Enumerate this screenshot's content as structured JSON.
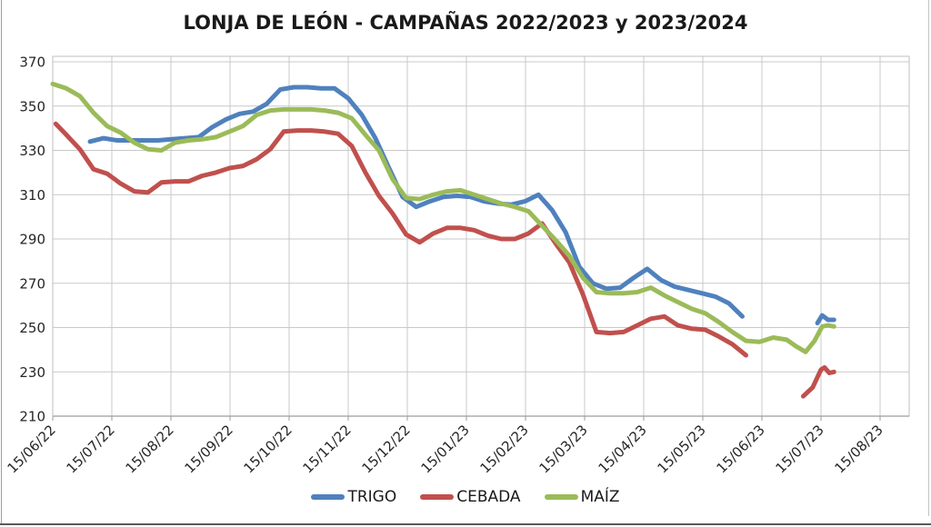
{
  "chart_data": {
    "type": "line",
    "title": "LONJA DE LEÓN - CAMPAÑAS 2022/2023 y 2023/2024",
    "x_axis_note": "x in month-tick units: 0 = 15/06/22, +1 per monthly tick; points are weekly lonja sessions",
    "x_tick_labels": [
      "15/06/22",
      "15/07/22",
      "15/08/22",
      "15/09/22",
      "15/10/22",
      "15/11/22",
      "15/12/22",
      "15/01/23",
      "15/02/23",
      "15/03/23",
      "15/04/23",
      "15/05/23",
      "15/06/23",
      "15/07/23",
      "15/08/23"
    ],
    "y_ticks": [
      210,
      230,
      250,
      270,
      290,
      310,
      330,
      350,
      370
    ],
    "ylim": [
      210,
      370
    ],
    "xlim_months": [
      0,
      14.49
    ],
    "grid": true,
    "legend_position": "bottom",
    "axis_color": "#9c9c9c",
    "grid_color": "#c9c9c9",
    "series": [
      {
        "name": "TRIGO",
        "color": "#4F81BD",
        "segments": [
          [
            [
              0.63,
              334
            ],
            [
              0.86,
              335.5
            ],
            [
              1.09,
              334.5
            ],
            [
              1.32,
              334.5
            ],
            [
              1.55,
              334.5
            ],
            [
              1.78,
              334.5
            ],
            [
              2.01,
              335
            ],
            [
              2.24,
              335.5
            ],
            [
              2.47,
              336
            ],
            [
              2.7,
              340.5
            ],
            [
              2.93,
              344
            ],
            [
              3.16,
              346.5
            ],
            [
              3.39,
              347.5
            ],
            [
              3.62,
              351
            ],
            [
              3.85,
              357.5
            ],
            [
              4.08,
              358.5
            ],
            [
              4.31,
              358.5
            ],
            [
              4.54,
              358
            ],
            [
              4.77,
              358
            ],
            [
              5.0,
              353.5
            ],
            [
              5.23,
              346
            ],
            [
              5.46,
              335.5
            ],
            [
              5.69,
              322
            ],
            [
              5.92,
              309
            ],
            [
              6.15,
              304.5
            ],
            [
              6.38,
              307
            ],
            [
              6.61,
              309
            ],
            [
              6.84,
              309.5
            ],
            [
              7.07,
              309
            ],
            [
              7.3,
              307
            ],
            [
              7.53,
              306
            ],
            [
              7.76,
              305.5
            ],
            [
              7.99,
              307
            ],
            [
              8.22,
              310
            ],
            [
              8.45,
              303
            ],
            [
              8.68,
              293
            ],
            [
              8.91,
              277.5
            ],
            [
              9.14,
              270
            ],
            [
              9.37,
              267.5
            ],
            [
              9.6,
              268
            ],
            [
              9.83,
              272.5
            ],
            [
              10.06,
              276.5
            ],
            [
              10.29,
              271.5
            ],
            [
              10.52,
              268.5
            ],
            [
              10.75,
              267
            ],
            [
              10.98,
              265.5
            ],
            [
              11.21,
              264
            ],
            [
              11.44,
              261
            ],
            [
              11.67,
              255
            ]
          ],
          [
            [
              12.94,
              252
            ],
            [
              13.02,
              255.5
            ],
            [
              13.12,
              253.5
            ],
            [
              13.22,
              253.5
            ]
          ]
        ]
      },
      {
        "name": "CEBADA",
        "color": "#C0504D",
        "segments": [
          [
            [
              0.05,
              342
            ],
            [
              0.23,
              337
            ],
            [
              0.46,
              330.5
            ],
            [
              0.69,
              321.5
            ],
            [
              0.92,
              319.5
            ],
            [
              1.15,
              315
            ],
            [
              1.38,
              311.5
            ],
            [
              1.61,
              311
            ],
            [
              1.84,
              315.5
            ],
            [
              2.07,
              316
            ],
            [
              2.3,
              316
            ],
            [
              2.53,
              318.5
            ],
            [
              2.76,
              320
            ],
            [
              2.99,
              322
            ],
            [
              3.22,
              323
            ],
            [
              3.45,
              326
            ],
            [
              3.68,
              330.5
            ],
            [
              3.91,
              338.5
            ],
            [
              4.14,
              339
            ],
            [
              4.37,
              339
            ],
            [
              4.6,
              338.5
            ],
            [
              4.83,
              337.5
            ],
            [
              5.06,
              332
            ],
            [
              5.29,
              320
            ],
            [
              5.52,
              309.5
            ],
            [
              5.75,
              301.5
            ],
            [
              5.98,
              292
            ],
            [
              6.21,
              288.5
            ],
            [
              6.44,
              292.5
            ],
            [
              6.67,
              295
            ],
            [
              6.9,
              295
            ],
            [
              7.13,
              294
            ],
            [
              7.36,
              291.5
            ],
            [
              7.59,
              290
            ],
            [
              7.82,
              290
            ],
            [
              8.05,
              292.5
            ],
            [
              8.28,
              297
            ],
            [
              8.51,
              288
            ],
            [
              8.74,
              279.5
            ],
            [
              8.97,
              265
            ],
            [
              9.2,
              248
            ],
            [
              9.43,
              247.5
            ],
            [
              9.66,
              248
            ],
            [
              9.89,
              251
            ],
            [
              10.12,
              254
            ],
            [
              10.35,
              255
            ],
            [
              10.58,
              251
            ],
            [
              10.81,
              249.5
            ],
            [
              11.04,
              249
            ],
            [
              11.27,
              246
            ],
            [
              11.5,
              242.5
            ],
            [
              11.73,
              237.5
            ]
          ],
          [
            [
              12.7,
              219
            ],
            [
              12.86,
              223
            ],
            [
              13.0,
              231
            ],
            [
              13.06,
              232
            ],
            [
              13.14,
              229.5
            ],
            [
              13.22,
              230
            ]
          ]
        ]
      },
      {
        "name": "MAÍZ",
        "color": "#9BBB59",
        "segments": [
          [
            [
              0.0,
              360
            ],
            [
              0.23,
              358
            ],
            [
              0.46,
              354.5
            ],
            [
              0.69,
              347
            ],
            [
              0.92,
              341
            ],
            [
              1.15,
              338
            ],
            [
              1.38,
              333.5
            ],
            [
              1.61,
              330.5
            ],
            [
              1.84,
              330
            ],
            [
              2.07,
              333.5
            ],
            [
              2.3,
              334.5
            ],
            [
              2.53,
              335
            ],
            [
              2.76,
              336
            ],
            [
              2.99,
              338.5
            ],
            [
              3.22,
              341
            ],
            [
              3.45,
              346
            ],
            [
              3.68,
              348
            ],
            [
              3.91,
              348.5
            ],
            [
              4.14,
              348.5
            ],
            [
              4.37,
              348.5
            ],
            [
              4.6,
              348
            ],
            [
              4.83,
              347
            ],
            [
              5.06,
              344.5
            ],
            [
              5.29,
              337
            ],
            [
              5.52,
              330
            ],
            [
              5.75,
              317
            ],
            [
              5.98,
              308.5
            ],
            [
              6.21,
              308
            ],
            [
              6.44,
              310
            ],
            [
              6.67,
              311.5
            ],
            [
              6.9,
              312
            ],
            [
              7.13,
              310
            ],
            [
              7.36,
              308
            ],
            [
              7.59,
              306
            ],
            [
              7.82,
              304.5
            ],
            [
              8.05,
              302.5
            ],
            [
              8.28,
              296
            ],
            [
              8.51,
              289.5
            ],
            [
              8.74,
              282.5
            ],
            [
              8.97,
              272.5
            ],
            [
              9.2,
              266
            ],
            [
              9.43,
              265.5
            ],
            [
              9.66,
              265.5
            ],
            [
              9.89,
              266
            ],
            [
              10.12,
              268
            ],
            [
              10.35,
              264.5
            ],
            [
              10.58,
              261.5
            ],
            [
              10.81,
              258.5
            ],
            [
              11.04,
              256.5
            ],
            [
              11.27,
              252.5
            ],
            [
              11.5,
              248
            ],
            [
              11.73,
              244
            ],
            [
              11.96,
              243.5
            ],
            [
              12.19,
              245.5
            ],
            [
              12.42,
              244.5
            ],
            [
              12.58,
              241.5
            ],
            [
              12.74,
              239
            ],
            [
              12.89,
              244
            ],
            [
              13.02,
              250.5
            ],
            [
              13.12,
              251
            ],
            [
              13.22,
              250.5
            ]
          ]
        ]
      }
    ]
  }
}
